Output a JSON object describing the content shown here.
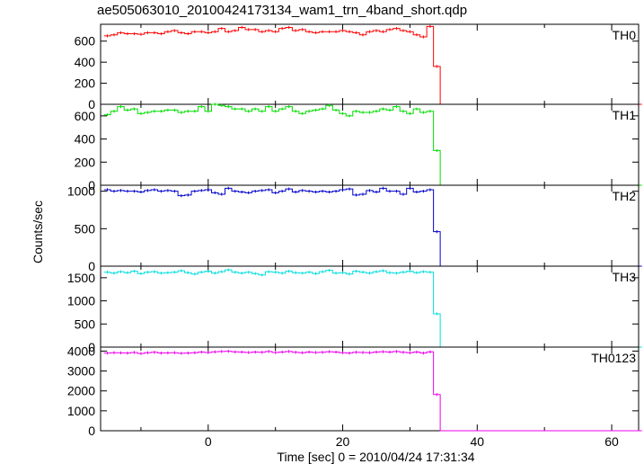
{
  "title": "ae505063010_20100424173134_wam1_trn_4band_short.qdp",
  "chart_data": {
    "type": "line",
    "title": "ae505063010_20100424173134_wam1_trn_4band_short.qdp",
    "xlabel": "Time [sec] 0 = 2010/04/24 17:31:34",
    "ylabel": "Counts/sec",
    "xlim": [
      -16,
      64
    ],
    "xticks": [
      0,
      20,
      40,
      60
    ],
    "bin_start": -15.5,
    "bin_width": 1,
    "grid": false,
    "legend": "none",
    "panels": [
      {
        "name": "TH0",
        "color": "#ff0000",
        "ylim": [
          0,
          760
        ],
        "yticks": [
          0,
          200,
          400,
          600
        ],
        "values": [
          650,
          660,
          680,
          670,
          670,
          665,
          680,
          680,
          670,
          690,
          700,
          680,
          670,
          690,
          690,
          680,
          690,
          720,
          690,
          700,
          730,
          710,
          710,
          690,
          700,
          690,
          720,
          730,
          700,
          710,
          690,
          680,
          690,
          690,
          690,
          700,
          690,
          680,
          660,
          690,
          700,
          690,
          710,
          720,
          700,
          690,
          660,
          640,
          740,
          360,
          0,
          0,
          0,
          0,
          0,
          0,
          0,
          0,
          0,
          0,
          0,
          0,
          0,
          0,
          0,
          0,
          0,
          0,
          0,
          0,
          0,
          0,
          0,
          0,
          0,
          0,
          0,
          0,
          0,
          0
        ]
      },
      {
        "name": "TH1",
        "color": "#00dd00",
        "ylim": [
          0,
          700
        ],
        "yticks": [
          0,
          200,
          400,
          600
        ],
        "values": [
          610,
          640,
          680,
          650,
          660,
          620,
          630,
          640,
          640,
          650,
          650,
          630,
          640,
          640,
          680,
          640,
          700,
          690,
          680,
          660,
          660,
          640,
          660,
          640,
          680,
          640,
          660,
          680,
          640,
          620,
          640,
          650,
          660,
          690,
          650,
          620,
          600,
          640,
          630,
          630,
          640,
          660,
          650,
          680,
          640,
          620,
          660,
          630,
          640,
          300,
          0,
          0,
          0,
          0,
          0,
          0,
          0,
          0,
          0,
          0,
          0,
          0,
          0,
          0,
          0,
          0,
          0,
          0,
          0,
          0,
          0,
          0,
          0,
          0,
          0,
          0,
          0,
          0,
          0,
          0
        ]
      },
      {
        "name": "TH2",
        "color": "#0000cc",
        "ylim": [
          0,
          1080
        ],
        "yticks": [
          0,
          500,
          1000
        ],
        "values": [
          1020,
          1000,
          1010,
          1000,
          1000,
          990,
          1010,
          1020,
          1000,
          1010,
          1000,
          940,
          950,
          1000,
          1010,
          1020,
          980,
          960,
          1040,
          1000,
          990,
          980,
          1000,
          1010,
          1020,
          980,
          1000,
          1030,
          990,
          1010,
          1000,
          990,
          1000,
          990,
          1000,
          1020,
          1030,
          950,
          960,
          1010,
          990,
          1040,
          1000,
          1000,
          960,
          1040,
          990,
          1000,
          1020,
          460,
          0,
          0,
          0,
          0,
          0,
          0,
          0,
          0,
          0,
          0,
          0,
          0,
          0,
          0,
          0,
          0,
          0,
          0,
          0,
          0,
          0,
          0,
          0,
          0,
          0,
          0,
          0,
          0,
          0,
          0
        ]
      },
      {
        "name": "TH3",
        "color": "#00dddd",
        "ylim": [
          0,
          1750
        ],
        "yticks": [
          0,
          500,
          1000,
          1500
        ],
        "values": [
          1620,
          1600,
          1630,
          1610,
          1640,
          1590,
          1620,
          1630,
          1600,
          1610,
          1620,
          1650,
          1610,
          1580,
          1620,
          1640,
          1600,
          1630,
          1670,
          1620,
          1600,
          1620,
          1590,
          1560,
          1630,
          1620,
          1600,
          1640,
          1610,
          1600,
          1620,
          1590,
          1630,
          1660,
          1600,
          1610,
          1580,
          1640,
          1620,
          1600,
          1630,
          1650,
          1610,
          1600,
          1620,
          1640,
          1610,
          1630,
          1620,
          720,
          0,
          0,
          0,
          0,
          0,
          0,
          0,
          0,
          0,
          0,
          0,
          0,
          0,
          0,
          0,
          0,
          0,
          0,
          0,
          0,
          0,
          0,
          0,
          0,
          0,
          0,
          0,
          0,
          0,
          0
        ]
      },
      {
        "name": "TH0123",
        "color": "#ee00ee",
        "ylim": [
          0,
          4200
        ],
        "yticks": [
          0,
          1000,
          2000,
          3000,
          4000
        ],
        "values": [
          3900,
          3920,
          3910,
          3900,
          3930,
          3880,
          3920,
          3940,
          3900,
          3910,
          3920,
          3890,
          3900,
          3920,
          3950,
          3930,
          3960,
          3980,
          3990,
          3960,
          3950,
          3930,
          3950,
          3940,
          3980,
          3930,
          3950,
          3980,
          3940,
          3920,
          3950,
          3930,
          3940,
          3970,
          3950,
          3920,
          3900,
          3940,
          3930,
          3920,
          3950,
          3970,
          3950,
          3980,
          3940,
          3920,
          3950,
          3900,
          3960,
          1820,
          0,
          0,
          0,
          0,
          0,
          0,
          0,
          0,
          0,
          0,
          0,
          0,
          0,
          0,
          0,
          0,
          0,
          0,
          0,
          0,
          0,
          0,
          0,
          0,
          0,
          0,
          0,
          0,
          0,
          0
        ]
      }
    ]
  }
}
